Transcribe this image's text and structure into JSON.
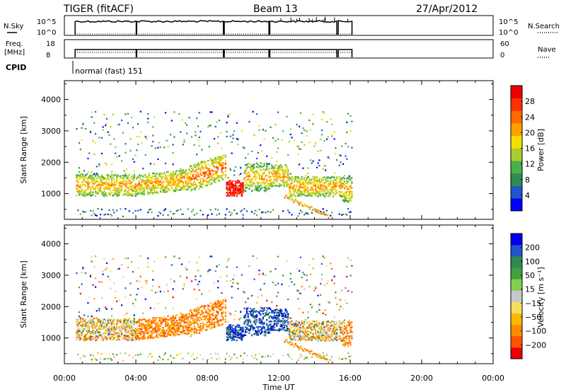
{
  "header": {
    "radar": "TIGER (fitACF)",
    "beam": "Beam 13",
    "date": "27/Apr/2012"
  },
  "strips": {
    "nsky_label": "N.Sky",
    "nsky_ticks": [
      "10^5",
      "10^0"
    ],
    "nsky_right_ticks": [
      "10^5",
      "10^0"
    ],
    "nsearch_label": "N.Search",
    "freq_label_1": "Freq.",
    "freq_label_2": "[MHz]",
    "freq_ticks": [
      "18",
      "8"
    ],
    "nave_ticks": [
      "60",
      "0"
    ],
    "nave_label": "Nave",
    "cpid_label": "CPID",
    "cpid_text": "normal (fast) 151"
  },
  "colors": {
    "power": [
      "#0000ff",
      "#2255cc",
      "#2f8a4f",
      "#48b24a",
      "#a8cc30",
      "#f0e000",
      "#ffa000",
      "#ff6a00",
      "#ff3000",
      "#ee0000"
    ],
    "velocity": [
      "#ee0000",
      "#ff5500",
      "#ff8c00",
      "#ffb800",
      "#f4e060",
      "#c8c8c8",
      "#80d050",
      "#40a040",
      "#2f8a4f",
      "#2255cc",
      "#0000ee"
    ]
  },
  "chart_data": [
    {
      "type": "heatmap",
      "name": "power",
      "ylabel": "Slant Range [km]",
      "ylim": [
        180,
        4600
      ],
      "yticks": [
        "4000",
        "3000",
        "2000",
        "1000"
      ],
      "xlim": [
        "00:00",
        "24:00"
      ],
      "colorbar": {
        "label": "Power [dB]",
        "ticks": [
          "28",
          "24",
          "20",
          "16",
          "12",
          "8",
          "4"
        ],
        "range": [
          0,
          32
        ]
      },
      "regions": [
        {
          "t": [
            0.0,
            4.0
          ],
          "range_km": [
            800,
            1700
          ],
          "value_db": 20
        },
        {
          "t": [
            4.0,
            7.0
          ],
          "range_km": [
            900,
            1600
          ],
          "value_db": 22
        },
        {
          "t": [
            7.0,
            9.0
          ],
          "range_km": [
            1000,
            2400
          ],
          "value_db": 26
        },
        {
          "t": [
            9.0,
            10.0
          ],
          "range_km": [
            900,
            1400
          ],
          "value_db": 30
        },
        {
          "t": [
            12.5,
            15.5
          ],
          "range_km": [
            800,
            1500
          ],
          "value_db": 18
        }
      ]
    },
    {
      "type": "heatmap",
      "name": "velocity",
      "ylabel": "Slant Range [km]",
      "xlabel": "Time UT",
      "ylim": [
        180,
        4600
      ],
      "yticks": [
        "4000",
        "3000",
        "2000",
        "1000"
      ],
      "xticks": [
        "00:00",
        "04:00",
        "08:00",
        "12:00",
        "16:00",
        "20:00",
        "00:00"
      ],
      "colorbar": {
        "label": "Velocity [m s⁻¹]",
        "ticks": [
          "200",
          "100",
          "50",
          "15",
          "−15",
          "−50",
          "−100",
          "−200"
        ]
      },
      "regions": [
        {
          "t": [
            0.0,
            4.0
          ],
          "range_km": [
            1000,
            1600
          ],
          "value_ms": -20
        },
        {
          "t": [
            4.0,
            8.0
          ],
          "range_km": [
            1000,
            1500
          ],
          "value_ms": -60
        },
        {
          "t": [
            9.0,
            12.5
          ],
          "range_km": [
            1100,
            1900
          ],
          "value_ms": 200
        },
        {
          "t": [
            12.5,
            15.5
          ],
          "range_km": [
            900,
            1500
          ],
          "value_ms": -30
        }
      ]
    }
  ]
}
